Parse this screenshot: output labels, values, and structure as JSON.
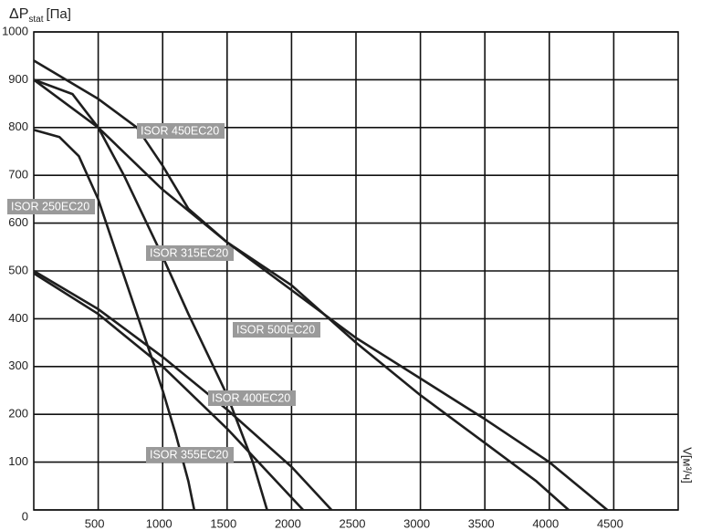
{
  "chart_data": {
    "type": "line",
    "ylabel": "ΔP",
    "ylabel_sub": "stat",
    "ylabel_unit": "[Па]",
    "xlabel": "V[м³/ч]",
    "xlim": [
      0,
      5000
    ],
    "ylim": [
      0,
      1000
    ],
    "xticks": [
      500,
      1000,
      1500,
      2000,
      2500,
      3000,
      3500,
      4000,
      4500
    ],
    "yticks": [
      0,
      100,
      200,
      300,
      400,
      500,
      600,
      700,
      800,
      900,
      1000
    ],
    "grid": true,
    "series": [
      {
        "name": "ISOR 450EC20",
        "color": "#1e1e1e",
        "x": [
          0,
          500,
          800,
          1000,
          1200,
          1500,
          2000,
          2500,
          3000,
          3500,
          3900,
          4150
        ],
        "values": [
          940,
          860,
          800,
          720,
          630,
          560,
          470,
          350,
          240,
          140,
          60,
          0
        ]
      },
      {
        "name": "ISOR 250EC20",
        "color": "#1e1e1e",
        "x": [
          0,
          200,
          350,
          500,
          600,
          700,
          800,
          900,
          1000,
          1100,
          1200,
          1245
        ],
        "values": [
          795,
          780,
          740,
          650,
          570,
          490,
          410,
          330,
          250,
          160,
          60,
          0
        ]
      },
      {
        "name": "ISOR 315EC20",
        "color": "#1e1e1e",
        "x": [
          0,
          300,
          500,
          700,
          1000,
          1200,
          1500,
          1700,
          1810
        ],
        "values": [
          900,
          870,
          800,
          700,
          530,
          410,
          240,
          100,
          0
        ]
      },
      {
        "name": "ISOR 500EC20",
        "color": "#1e1e1e",
        "x": [
          0,
          500,
          1000,
          1500,
          2000,
          2500,
          3000,
          3500,
          4000,
          4450
        ],
        "values": [
          900,
          800,
          670,
          560,
          460,
          360,
          275,
          190,
          100,
          0
        ]
      },
      {
        "name": "ISOR 400EC20",
        "color": "#1e1e1e",
        "x": [
          0,
          500,
          1000,
          1500,
          2000,
          2310
        ],
        "values": [
          500,
          420,
          320,
          210,
          90,
          0
        ]
      },
      {
        "name": "ISOR 355EC20",
        "color": "#1e1e1e",
        "x": [
          0,
          500,
          1000,
          1500,
          2090
        ],
        "values": [
          495,
          410,
          300,
          170,
          0
        ]
      }
    ]
  }
}
